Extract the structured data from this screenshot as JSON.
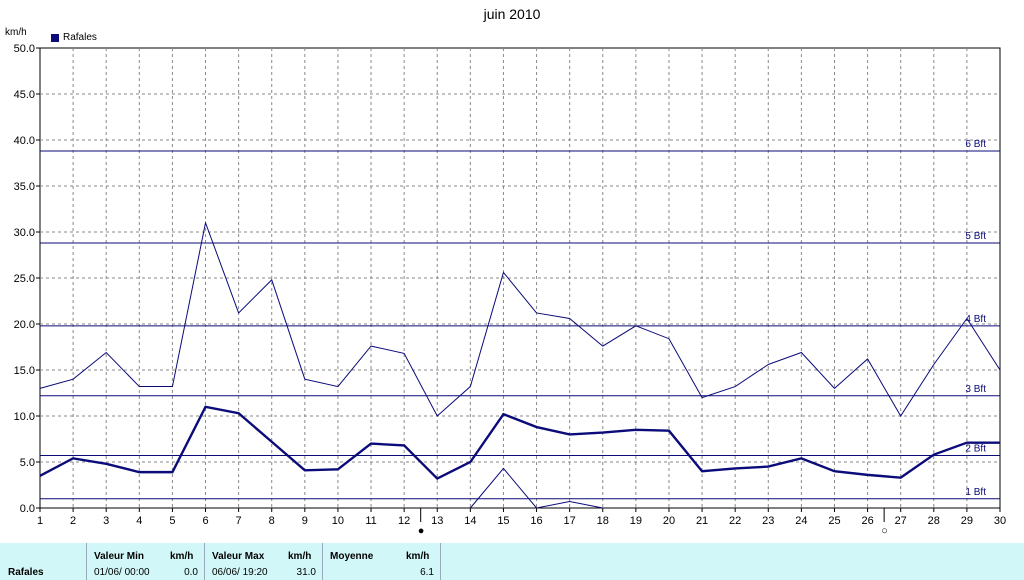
{
  "chart_data": {
    "type": "line",
    "title": "juin 2010",
    "ylabel": "km/h",
    "x": [
      1,
      2,
      3,
      4,
      5,
      6,
      7,
      8,
      9,
      10,
      11,
      12,
      13,
      14,
      15,
      16,
      17,
      18,
      19,
      20,
      21,
      22,
      23,
      24,
      25,
      26,
      27,
      28,
      29,
      30
    ],
    "ylim": [
      0,
      50
    ],
    "xlim": [
      1,
      30
    ],
    "yticks": [
      "0.0",
      "5.0",
      "10.0",
      "15.0",
      "20.0",
      "25.0",
      "30.0",
      "35.0",
      "40.0",
      "45.0",
      "50.0"
    ],
    "grid": true,
    "legend_position": "top-left",
    "legend": [
      "Rafales"
    ],
    "series": [
      {
        "name": "Rafales",
        "role": "max",
        "values": [
          13.0,
          14.0,
          16.9,
          13.2,
          13.2,
          31.0,
          21.2,
          24.8,
          14.0,
          13.2,
          17.6,
          16.8,
          10.0,
          13.2,
          25.6,
          21.2,
          20.6,
          17.6,
          19.8,
          18.4,
          12.0,
          13.2,
          15.6,
          16.9,
          13.0,
          16.2,
          10.0,
          15.6,
          20.6,
          15.0
        ]
      },
      {
        "role": "moyenne",
        "values": [
          3.5,
          5.4,
          4.8,
          3.9,
          3.9,
          11.0,
          10.3,
          7.2,
          4.1,
          4.2,
          7.0,
          6.8,
          3.2,
          5.0,
          10.2,
          8.8,
          8.0,
          8.2,
          8.5,
          8.4,
          4.0,
          4.3,
          4.5,
          5.4,
          4.0,
          3.6,
          3.3,
          5.8,
          7.1,
          7.1
        ]
      },
      {
        "role": "min",
        "x": [
          14,
          15,
          16,
          17,
          18
        ],
        "values": [
          0.0,
          4.3,
          0.0,
          0.7,
          0.0
        ]
      }
    ],
    "beaufort_lines": [
      {
        "label": "1 Bft",
        "value": 1.0
      },
      {
        "label": "2 Bft",
        "value": 5.7
      },
      {
        "label": "3 Bft",
        "value": 12.2
      },
      {
        "label": "4 Bft",
        "value": 19.8
      },
      {
        "label": "5 Bft",
        "value": 28.8
      },
      {
        "label": "6 Bft",
        "value": 38.8
      }
    ],
    "moon_markers": [
      {
        "x": 12.5,
        "symbol": "●"
      },
      {
        "x": 26.5,
        "symbol": "○"
      }
    ],
    "colors": {
      "line": "#0b0b7a",
      "grid": "#8a8a8a",
      "axis": "#000000"
    }
  },
  "footer": {
    "row_label": "Rafales",
    "min_header": "Valeur Min",
    "min_unit": "km/h",
    "min_date": "01/06/  00:00",
    "min_value": "0.0",
    "max_header": "Valeur Max",
    "max_unit": "km/h",
    "max_date": "06/06/  19:20",
    "max_value": "31.0",
    "avg_header": "Moyenne",
    "avg_unit": "km/h",
    "avg_value": "6.1"
  }
}
